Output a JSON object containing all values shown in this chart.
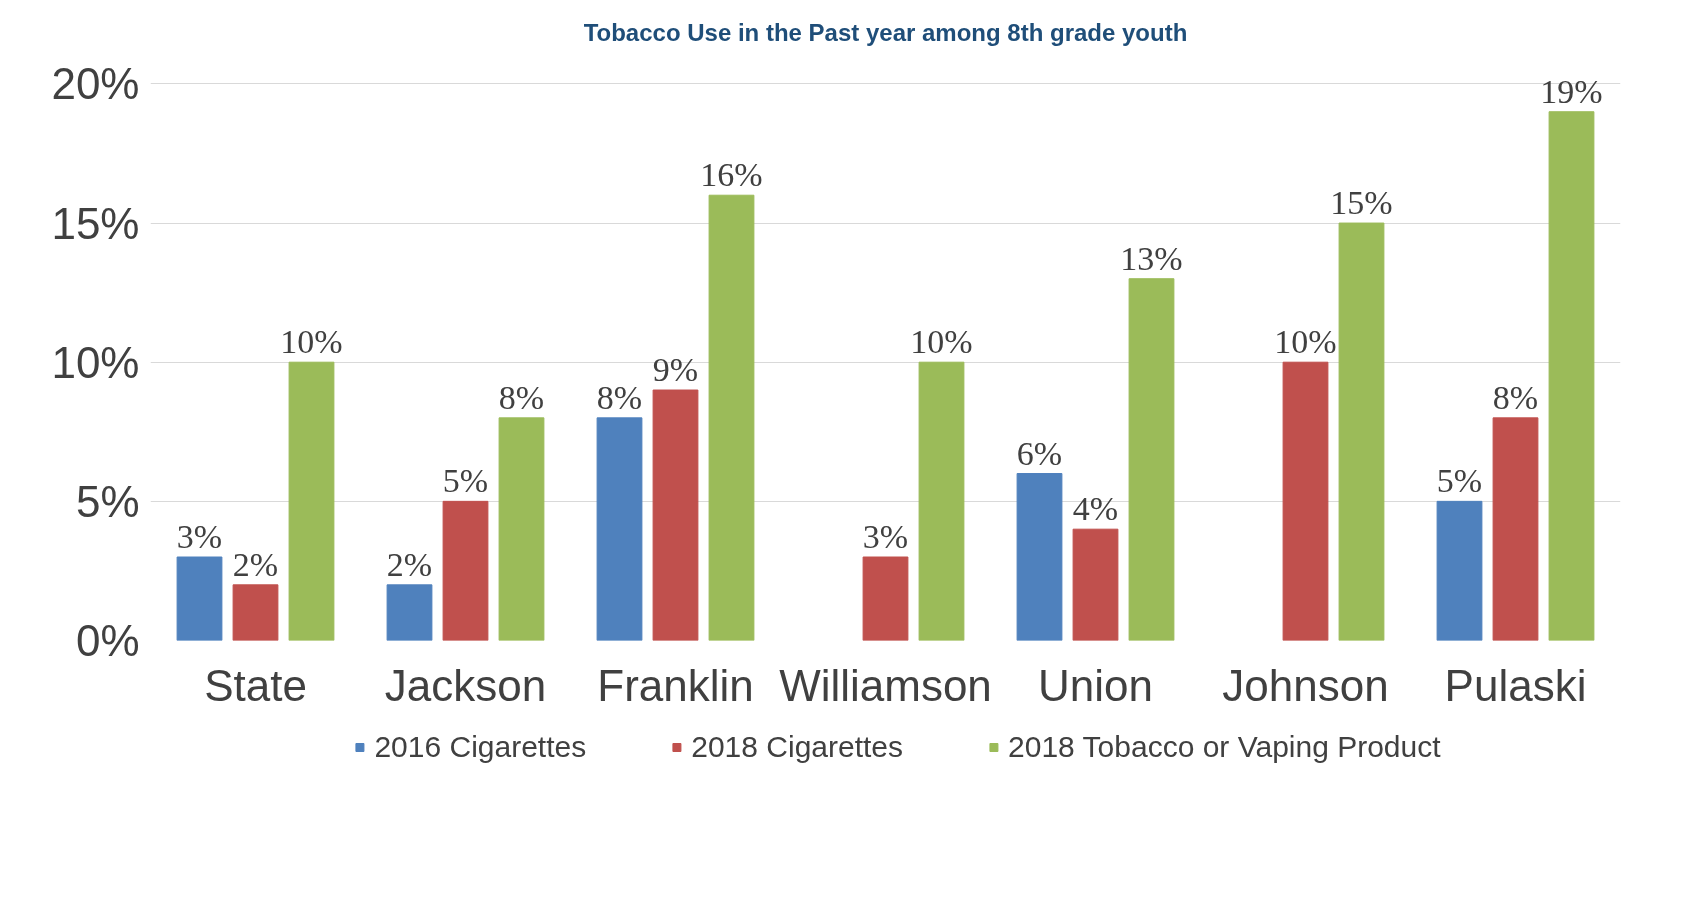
{
  "chart_data": {
    "type": "bar",
    "title": "Tobacco Use in the Past year among 8th grade youth",
    "categories": [
      "State",
      "Jackson",
      "Franklin",
      "Williamson",
      "Union",
      "Johnson",
      "Pulaski"
    ],
    "series": [
      {
        "name": "2016 Cigarettes",
        "color": "#4f81bd",
        "values": [
          3,
          2,
          8,
          null,
          6,
          null,
          5
        ],
        "value_labels": [
          "3%",
          "2%",
          "8%",
          null,
          "6%",
          null,
          "5%"
        ]
      },
      {
        "name": "2018 Cigarettes",
        "color": "#c0504d",
        "values": [
          2,
          5,
          9,
          3,
          4,
          10,
          8
        ],
        "value_labels": [
          "2%",
          "5%",
          "9%",
          "3%",
          "4%",
          "10%",
          "8%"
        ]
      },
      {
        "name": "2018 Tobacco or Vaping Product",
        "color": "#9bbb59",
        "values": [
          10,
          8,
          16,
          10,
          13,
          15,
          19
        ],
        "value_labels": [
          "10%",
          "8%",
          "16%",
          "10%",
          "13%",
          "15%",
          "19%"
        ]
      }
    ],
    "ylim": [
      0,
      20
    ],
    "yticks": [
      {
        "value": 0,
        "label": "0%"
      },
      {
        "value": 5,
        "label": "5%"
      },
      {
        "value": 10,
        "label": "10%"
      },
      {
        "value": 15,
        "label": "15%"
      },
      {
        "value": 20,
        "label": "20%"
      }
    ],
    "grid": "y",
    "legend": "bottom",
    "data_labels": true
  }
}
